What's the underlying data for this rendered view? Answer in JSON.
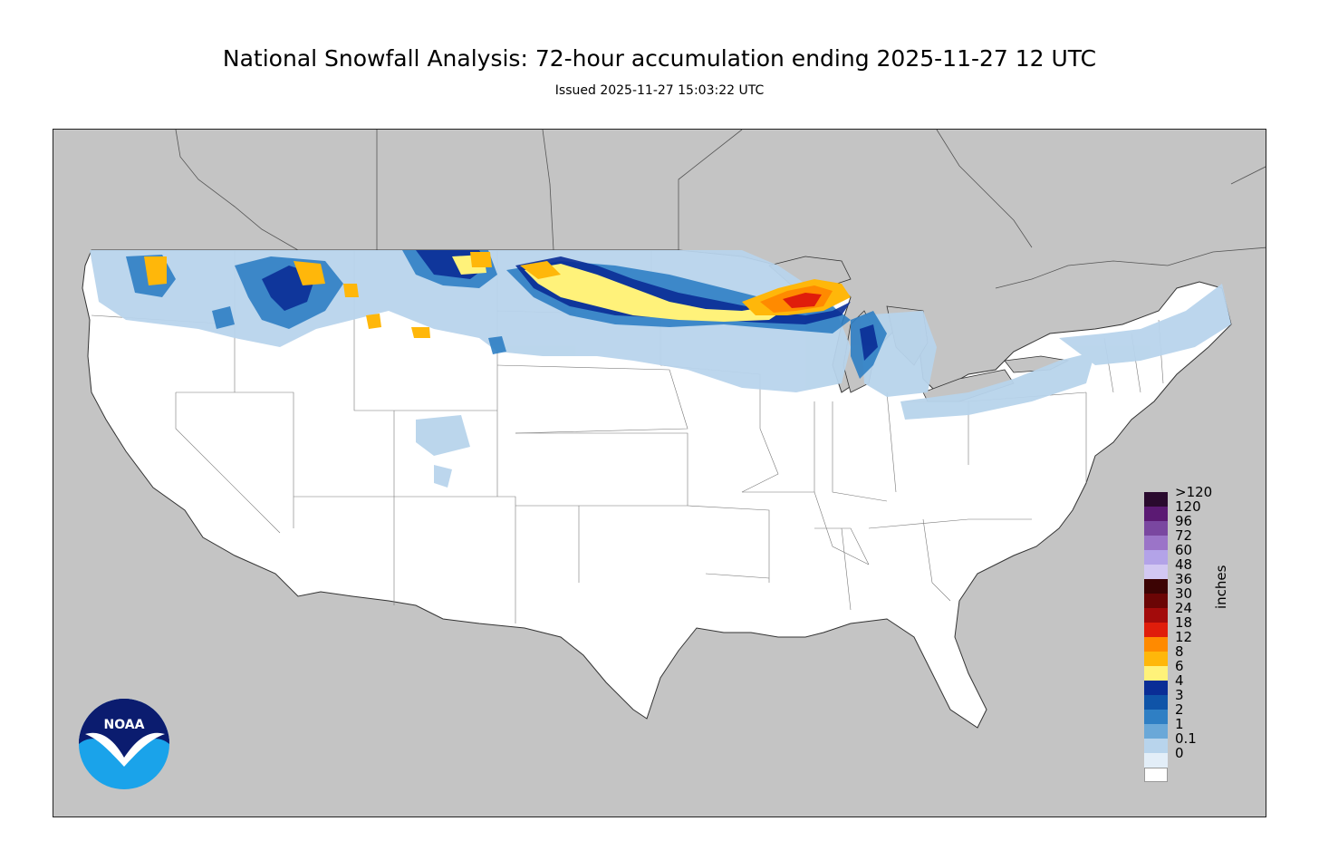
{
  "title": "National Snowfall Analysis: 72-hour accumulation ending 2025-11-27 12 UTC",
  "subtitle": "Issued 2025-11-27 15:03:22 UTC",
  "legend": {
    "unit": "inches",
    "bins": [
      {
        "label": ">120",
        "color": "#2a0a2e"
      },
      {
        "label": "120",
        "color": "#5b1a73"
      },
      {
        "label": "96",
        "color": "#7a47a0"
      },
      {
        "label": "72",
        "color": "#9b74c8"
      },
      {
        "label": "60",
        "color": "#b3a3e8"
      },
      {
        "label": "48",
        "color": "#d2c8f2"
      },
      {
        "label": "36",
        "color": "#3c0303"
      },
      {
        "label": "30",
        "color": "#6b0505"
      },
      {
        "label": "24",
        "color": "#a30b0b"
      },
      {
        "label": "18",
        "color": "#e01d0b"
      },
      {
        "label": "12",
        "color": "#ff8a00"
      },
      {
        "label": "8",
        "color": "#ffb70a"
      },
      {
        "label": "6",
        "color": "#fff27a"
      },
      {
        "label": "4",
        "color": "#0a2d96"
      },
      {
        "label": "3",
        "color": "#0f54a8"
      },
      {
        "label": "2",
        "color": "#2f7fc4"
      },
      {
        "label": "1",
        "color": "#6aa8d8"
      },
      {
        "label": "0.1",
        "color": "#b8d4ec"
      },
      {
        "label": "0",
        "color": "#e3eef8"
      }
    ],
    "zero_color": "#ffffff"
  },
  "logo": {
    "text": "NOAA"
  },
  "colors": {
    "background_land_outside": "#c4c4c4",
    "land_no_snow": "#ffffff",
    "border": "#333333"
  }
}
